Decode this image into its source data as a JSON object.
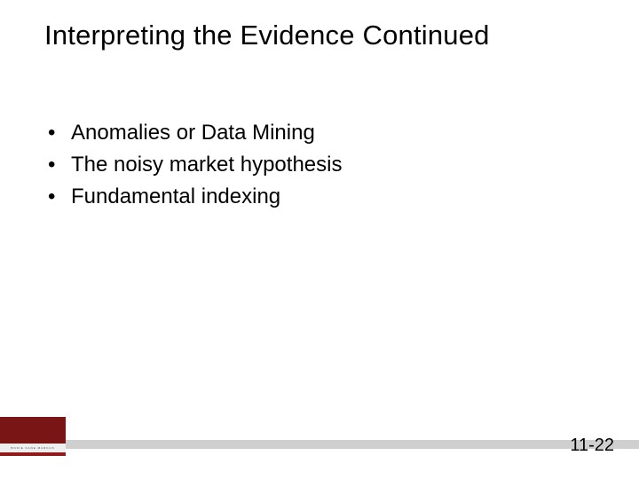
{
  "title": "Interpreting the Evidence Continued",
  "bullets": [
    "Anomalies or Data Mining",
    "The noisy market hypothesis",
    "Fundamental indexing"
  ],
  "footer": {
    "book_authors": "BODIE  KANE  MARCUS",
    "page_number": "11-22"
  },
  "colors": {
    "book_red": "#8f1b1b",
    "book_red_dark": "#7a1515",
    "bar_gray": "#cfcfcf",
    "label_bg": "#efefef",
    "text": "#000000",
    "background": "#ffffff"
  }
}
